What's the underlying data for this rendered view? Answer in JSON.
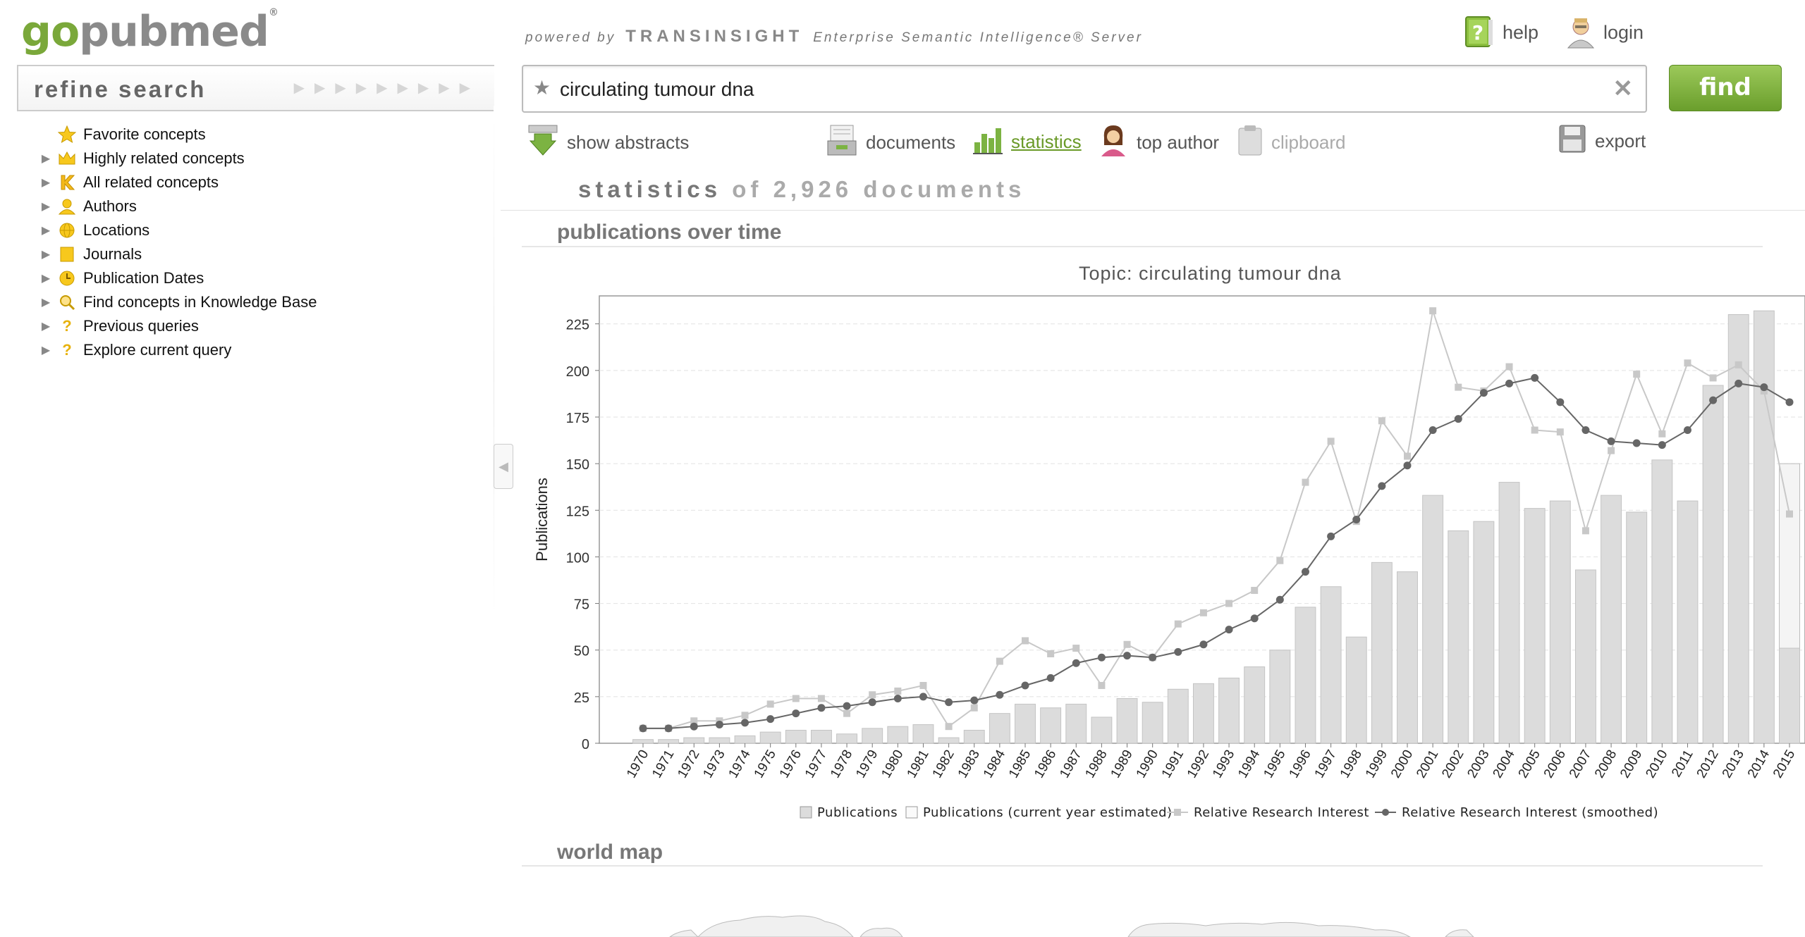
{
  "logo": {
    "part1": "go",
    "part2": "pubmed",
    "mark": "®"
  },
  "powered": {
    "prefix": "powered by",
    "brand": "TRANSINSIGHT",
    "suffix": "Enterprise Semantic Intelligence® Server"
  },
  "topnav": {
    "help": "help",
    "login": "login"
  },
  "refine": {
    "title": "refine search",
    "items": [
      {
        "label": "Favorite concepts",
        "icon": "star-icon",
        "expandable": false
      },
      {
        "label": "Highly related concepts",
        "icon": "crown-icon",
        "expandable": true
      },
      {
        "label": "All related concepts",
        "icon": "k-icon",
        "expandable": true
      },
      {
        "label": "Authors",
        "icon": "person-icon",
        "expandable": true
      },
      {
        "label": "Locations",
        "icon": "globe-icon",
        "expandable": true
      },
      {
        "label": "Journals",
        "icon": "journal-icon",
        "expandable": true
      },
      {
        "label": "Publication Dates",
        "icon": "clock-icon",
        "expandable": true
      },
      {
        "label": "Find concepts in Knowledge Base",
        "icon": "magnifier-icon",
        "expandable": true
      },
      {
        "label": "Previous queries",
        "icon": "question-icon",
        "expandable": true
      },
      {
        "label": "Explore current query",
        "icon": "question-icon",
        "expandable": true
      }
    ]
  },
  "search": {
    "value": "circulating tumour dna",
    "button": "find"
  },
  "toolbar": {
    "show_abstracts": "show abstracts",
    "documents": "documents",
    "statistics": "statistics",
    "top_author": "top author",
    "clipboard": "clipboard",
    "export": "export"
  },
  "stats_heading": {
    "main": "statistics",
    "rest": "of 2,926 documents"
  },
  "sections": {
    "publications": "publications over time",
    "world_map": "world map"
  },
  "chart_data": {
    "type": "bar",
    "title": "Topic: circulating tumour dna",
    "ylabel": "Publications",
    "xlabel": "",
    "ylim": [
      0,
      240
    ],
    "yticks": [
      0,
      25,
      50,
      75,
      100,
      125,
      150,
      175,
      200,
      225
    ],
    "categories": [
      "1970",
      "1971",
      "1972",
      "1973",
      "1974",
      "1975",
      "1976",
      "1977",
      "1978",
      "1979",
      "1980",
      "1981",
      "1982",
      "1983",
      "1984",
      "1985",
      "1986",
      "1987",
      "1988",
      "1989",
      "1990",
      "1991",
      "1992",
      "1993",
      "1994",
      "1995",
      "1996",
      "1997",
      "1998",
      "1999",
      "2000",
      "2001",
      "2002",
      "2003",
      "2004",
      "2005",
      "2006",
      "2007",
      "2008",
      "2009",
      "2010",
      "2011",
      "2012",
      "2013",
      "2014",
      "2015"
    ],
    "legend": [
      "Publications",
      "Publications (current year estimated)",
      "Relative Research Interest",
      "Relative Research Interest (smoothed)"
    ],
    "legend_placement": "bottom",
    "grid": true,
    "series": [
      {
        "name": "Publications",
        "kind": "bar",
        "color": "#dcdcdc",
        "values": [
          2,
          2,
          3,
          3,
          4,
          6,
          7,
          7,
          5,
          8,
          9,
          10,
          3,
          7,
          16,
          21,
          19,
          21,
          14,
          24,
          22,
          29,
          32,
          35,
          41,
          50,
          73,
          84,
          57,
          97,
          92,
          133,
          114,
          119,
          140,
          126,
          130,
          93,
          133,
          124,
          152,
          130,
          192,
          230,
          232,
          51
        ]
      },
      {
        "name": "Publications (current year estimated)",
        "kind": "bar",
        "color": "#f4f4f4",
        "values": [
          null,
          null,
          null,
          null,
          null,
          null,
          null,
          null,
          null,
          null,
          null,
          null,
          null,
          null,
          null,
          null,
          null,
          null,
          null,
          null,
          null,
          null,
          null,
          null,
          null,
          null,
          null,
          null,
          null,
          null,
          null,
          null,
          null,
          null,
          null,
          null,
          null,
          null,
          null,
          null,
          null,
          null,
          null,
          null,
          null,
          150
        ]
      },
      {
        "name": "Relative Research Interest",
        "kind": "line",
        "color": "#c8c8c8",
        "values": [
          8,
          8,
          12,
          12,
          15,
          21,
          24,
          24,
          16,
          26,
          28,
          31,
          9,
          19,
          44,
          55,
          48,
          51,
          31,
          53,
          46,
          64,
          70,
          75,
          82,
          98,
          140,
          162,
          119,
          173,
          154,
          232,
          191,
          189,
          202,
          168,
          167,
          114,
          157,
          198,
          166,
          204,
          196,
          203,
          189,
          123
        ]
      },
      {
        "name": "Relative Research Interest (smoothed)",
        "kind": "line",
        "color": "#666666",
        "values": [
          8,
          8,
          9,
          10,
          11,
          13,
          16,
          19,
          20,
          22,
          24,
          25,
          22,
          23,
          26,
          31,
          35,
          43,
          46,
          47,
          46,
          49,
          53,
          61,
          67,
          77,
          92,
          111,
          120,
          138,
          149,
          168,
          174,
          188,
          193,
          196,
          183,
          168,
          162,
          161,
          160,
          168,
          184,
          193,
          191,
          183
        ]
      }
    ]
  },
  "colors": {
    "accent": "#7aa83a",
    "find_button": "#7fb23e"
  }
}
